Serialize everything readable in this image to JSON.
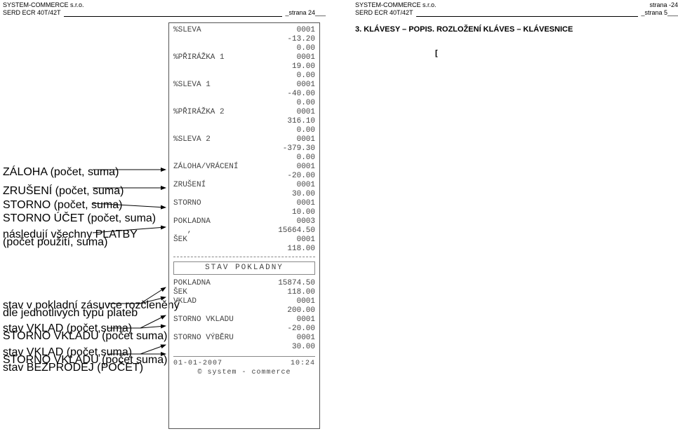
{
  "header": {
    "company": "SYSTEM-COMMERCE s.r.o.",
    "device": "SERD ECR 40T/42T",
    "page_left_suffix": "_strana 24___",
    "page_right_top": "strana -24",
    "page_right_suffix": "_strana 5___"
  },
  "section_title": "3. KLÁVESY – POPIS. ROZLOŽENÍ KLÁVES – KLÁVESNICE",
  "bracket": "[",
  "labels": {
    "l1": "ZÁLOHA (počet, suma)",
    "l2": "ZRUŠENÍ (počet, suma)",
    "l3": "STORNO (počet, suma)",
    "l4": "STORNO ÚČET (počet, suma)",
    "l5a": "následují všechny PLATBY",
    "l5b": "(počet použití, suma)",
    "l6a": "stav v pokladní zásuvce rozčleněný",
    "l6b": "dle jednotlivých typů plateb",
    "l7a": "stav VKLAD  (počet,suma)",
    "l7b": "STORNO VKLADU (počet suma)",
    "l8a": "stav VKLAD  (počet,suma)",
    "l8b": "STORNO VKLADU (počet suma)",
    "l8c": "stav BEZPRODEJ (POČET)"
  },
  "receipt": {
    "rows": [
      {
        "l": "%SLEVA",
        "r": "0001"
      },
      {
        "l": "",
        "r": "-13.20"
      },
      {
        "l": "",
        "r": "0.00"
      },
      {
        "l": "%PŘIRÁŽKA 1",
        "r": "0001"
      },
      {
        "l": "",
        "r": "19.00"
      },
      {
        "l": "",
        "r": "0.00"
      },
      {
        "l": "%SLEVA 1",
        "r": "0001"
      },
      {
        "l": "",
        "r": "-40.00"
      },
      {
        "l": "",
        "r": "0.00"
      },
      {
        "l": "%PŘIRÁŽKA 2",
        "r": "0001"
      },
      {
        "l": "",
        "r": "316.10"
      },
      {
        "l": "",
        "r": "0.00"
      },
      {
        "l": "%SLEVA 2",
        "r": "0001"
      },
      {
        "l": "",
        "r": "-379.30"
      },
      {
        "l": "",
        "r": "0.00"
      },
      {
        "l": "ZÁLOHA/VRÁCENÍ",
        "r": "0001"
      },
      {
        "l": "",
        "r": "-20.00"
      },
      {
        "l": "ZRUŠENÍ",
        "r": "0001"
      },
      {
        "l": "",
        "r": "30.00"
      },
      {
        "l": "STORNO",
        "r": "0001"
      },
      {
        "l": "",
        "r": "10.00"
      },
      {
        "l": "POKLADNA",
        "r": "0003"
      },
      {
        "l": "   ,",
        "r": "15664.50"
      },
      {
        "l": "ŠEK",
        "r": "0001"
      },
      {
        "l": "",
        "r": "118.00"
      }
    ],
    "banner": "STAV POKLADNY",
    "rows2": [
      {
        "l": "POKLADNA",
        "r": "15874.50"
      },
      {
        "l": "ŠEK",
        "r": "118.00"
      },
      {
        "l": "VKLAD",
        "r": "0001"
      },
      {
        "l": "",
        "r": "200.00"
      },
      {
        "l": "STORNO VKLADU",
        "r": "0001"
      },
      {
        "l": "",
        "r": "-20.00"
      },
      {
        "l": "STORNO VÝBĚRU",
        "r": "0001"
      },
      {
        "l": "",
        "r": "30.00"
      }
    ],
    "foot_l": "01-01-2007",
    "foot_r": "10:24",
    "copyright": "© system - commerce"
  }
}
